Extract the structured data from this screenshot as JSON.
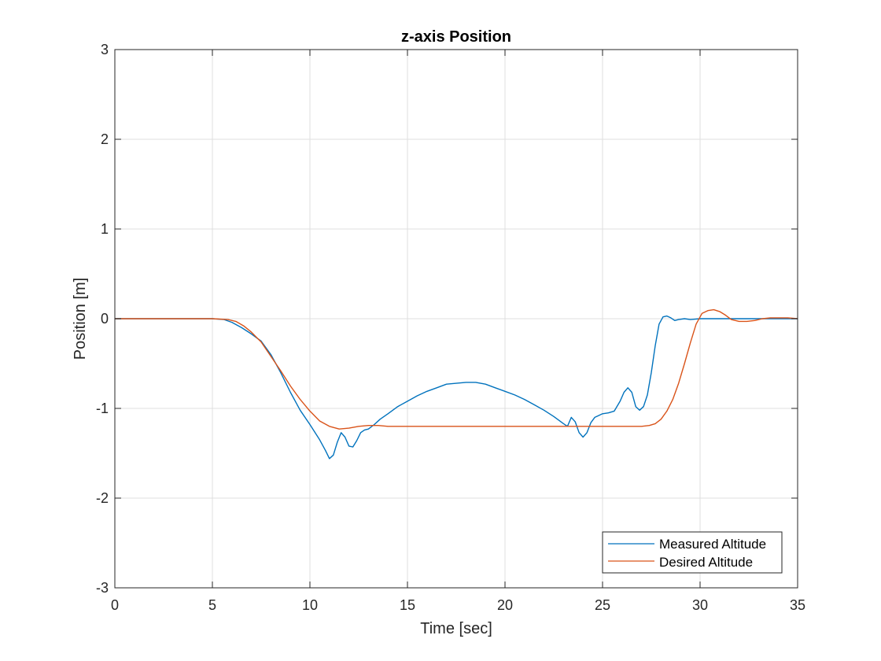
{
  "chart_data": {
    "type": "line",
    "title": "z-axis Position",
    "xlabel": "Time [sec]",
    "ylabel": "Position [m]",
    "xlim": [
      0,
      35
    ],
    "ylim": [
      -3,
      3
    ],
    "xticks": [
      0,
      5,
      10,
      15,
      20,
      25,
      30,
      35
    ],
    "yticks": [
      -3,
      -2,
      -1,
      0,
      1,
      2,
      3
    ],
    "grid": true,
    "legend_position": "bottom-right",
    "series": [
      {
        "name": "Measured Altitude",
        "color": "#0072BD",
        "x": [
          0,
          2,
          4,
          5,
          5.6,
          6.0,
          6.5,
          7.0,
          7.5,
          8.0,
          8.5,
          9.0,
          9.5,
          10.0,
          10.5,
          10.8,
          11.0,
          11.2,
          11.4,
          11.6,
          11.8,
          12.0,
          12.2,
          12.4,
          12.6,
          12.8,
          13.0,
          13.3,
          13.6,
          14.0,
          14.5,
          15.0,
          15.5,
          16.0,
          16.5,
          17.0,
          17.5,
          18.0,
          18.5,
          19.0,
          19.5,
          20.0,
          20.5,
          21.0,
          21.5,
          22.0,
          22.5,
          23.0,
          23.2,
          23.4,
          23.6,
          23.8,
          24.0,
          24.2,
          24.4,
          24.6,
          24.8,
          25.0,
          25.3,
          25.6,
          25.9,
          26.1,
          26.3,
          26.5,
          26.7,
          26.9,
          27.1,
          27.3,
          27.5,
          27.7,
          27.9,
          28.1,
          28.3,
          28.5,
          28.7,
          28.9,
          29.2,
          29.5,
          30.0,
          31.0,
          32.0,
          33.0,
          34.0,
          35.0
        ],
        "y": [
          0,
          0,
          0,
          0,
          -0.01,
          -0.04,
          -0.1,
          -0.17,
          -0.25,
          -0.4,
          -0.6,
          -0.82,
          -1.02,
          -1.18,
          -1.35,
          -1.47,
          -1.56,
          -1.52,
          -1.38,
          -1.27,
          -1.32,
          -1.42,
          -1.43,
          -1.36,
          -1.27,
          -1.24,
          -1.23,
          -1.18,
          -1.12,
          -1.06,
          -0.98,
          -0.92,
          -0.86,
          -0.81,
          -0.77,
          -0.73,
          -0.72,
          -0.71,
          -0.71,
          -0.73,
          -0.77,
          -0.81,
          -0.85,
          -0.9,
          -0.96,
          -1.02,
          -1.09,
          -1.17,
          -1.2,
          -1.1,
          -1.15,
          -1.27,
          -1.32,
          -1.27,
          -1.16,
          -1.1,
          -1.08,
          -1.06,
          -1.05,
          -1.03,
          -0.92,
          -0.82,
          -0.77,
          -0.82,
          -0.98,
          -1.02,
          -0.98,
          -0.85,
          -0.6,
          -0.3,
          -0.06,
          0.02,
          0.03,
          0.01,
          -0.02,
          -0.01,
          0.0,
          -0.01,
          0.0,
          0.0,
          0.0,
          0.0,
          0.0,
          0.0
        ]
      },
      {
        "name": "Desired Altitude",
        "color": "#D95319",
        "x": [
          0,
          2,
          4,
          5,
          5.8,
          6.2,
          6.6,
          7.0,
          7.5,
          8.0,
          8.5,
          9.0,
          9.5,
          10.0,
          10.5,
          11.0,
          11.5,
          12.0,
          12.5,
          13.0,
          13.5,
          14.0,
          16.0,
          18.0,
          20.0,
          22.0,
          24.0,
          26.0,
          27.0,
          27.4,
          27.7,
          28.0,
          28.3,
          28.6,
          28.9,
          29.2,
          29.5,
          29.8,
          30.1,
          30.4,
          30.7,
          31.0,
          31.3,
          31.6,
          32.0,
          32.4,
          32.8,
          33.2,
          33.6,
          34.0,
          34.5,
          35.0
        ],
        "y": [
          0,
          0,
          0,
          0,
          -0.01,
          -0.03,
          -0.08,
          -0.15,
          -0.26,
          -0.42,
          -0.58,
          -0.75,
          -0.9,
          -1.03,
          -1.14,
          -1.2,
          -1.23,
          -1.22,
          -1.2,
          -1.19,
          -1.19,
          -1.2,
          -1.2,
          -1.2,
          -1.2,
          -1.2,
          -1.2,
          -1.2,
          -1.2,
          -1.19,
          -1.17,
          -1.12,
          -1.03,
          -0.9,
          -0.72,
          -0.5,
          -0.27,
          -0.06,
          0.06,
          0.09,
          0.1,
          0.08,
          0.04,
          -0.01,
          -0.03,
          -0.03,
          -0.02,
          0.0,
          0.01,
          0.01,
          0.01,
          0.0
        ]
      }
    ]
  }
}
